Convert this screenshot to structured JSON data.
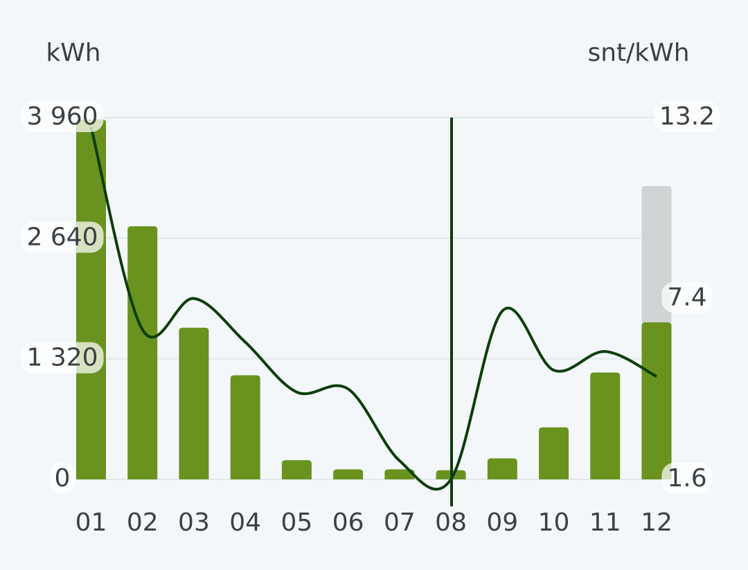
{
  "chart_data": {
    "type": "bar",
    "stacked": true,
    "y_label": "kWh",
    "y2_label": "snt/kWh",
    "categories": [
      "01",
      "02",
      "03",
      "04",
      "05",
      "06",
      "07",
      "08",
      "09",
      "10",
      "11",
      "12"
    ],
    "series": [
      {
        "color": "#6a921f",
        "values": [
          3940,
          2770,
          1660,
          1140,
          210,
          110,
          110,
          100,
          230,
          570,
          1170,
          1720
        ]
      },
      {
        "color": "#d1d4d4",
        "values": [
          null,
          null,
          null,
          null,
          null,
          null,
          null,
          null,
          null,
          null,
          null,
          1490
        ]
      },
      {
        "type": "line",
        "axis": "y2",
        "color": "#0d3d0a",
        "values": [
          12.9,
          6.4,
          7.4,
          6.0,
          4.4,
          4.5,
          2.2,
          1.6,
          7.0,
          5.1,
          5.7,
          4.9
        ]
      }
    ],
    "ylim": [
      0,
      3960
    ],
    "yticks": [
      0,
      {
        "value": 1320,
        "label": "1 320"
      },
      {
        "value": 2640,
        "label": "2 640"
      },
      {
        "value": 3960,
        "label": "3 960"
      }
    ],
    "y2lim": [
      1.6,
      13.2
    ],
    "y2ticks": [
      1.6,
      7.4,
      13.2
    ],
    "grid": true
  }
}
